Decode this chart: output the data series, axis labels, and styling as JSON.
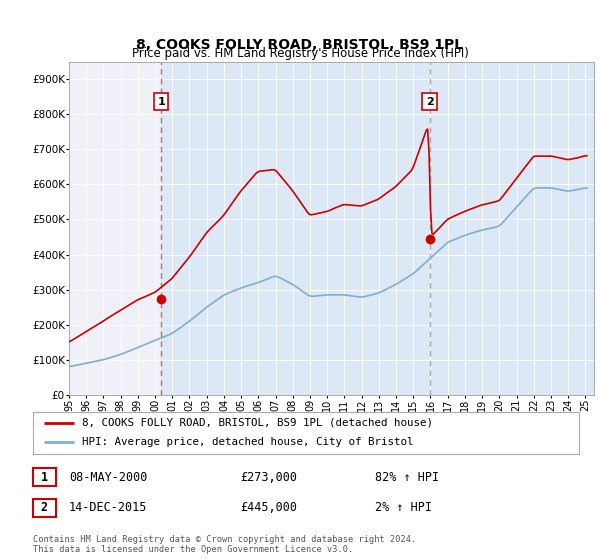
{
  "title": "8, COOKS FOLLY ROAD, BRISTOL, BS9 1PL",
  "subtitle": "Price paid vs. HM Land Registry's House Price Index (HPI)",
  "ylim": [
    0,
    950000
  ],
  "yticks": [
    0,
    100000,
    200000,
    300000,
    400000,
    500000,
    600000,
    700000,
    800000,
    900000
  ],
  "ytick_labels": [
    "£0",
    "£100K",
    "£200K",
    "£300K",
    "£400K",
    "£500K",
    "£600K",
    "£700K",
    "£800K",
    "£900K"
  ],
  "hpi_color": "#7bafd4",
  "price_color": "#cc0000",
  "marker_color": "#cc0000",
  "dashed_color": "#cc6666",
  "vline2_color": "#aaaaaa",
  "bg_color_left": "#f0f0f8",
  "bg_color_right": "#dce8f5",
  "sale1_year": 2000.35,
  "sale1_price": 273000,
  "sale2_year": 2015.95,
  "sale2_price": 445000,
  "legend_entry1": "8, COOKS FOLLY ROAD, BRISTOL, BS9 1PL (detached house)",
  "legend_entry2": "HPI: Average price, detached house, City of Bristol",
  "ann1_date": "08-MAY-2000",
  "ann1_price": "£273,000",
  "ann1_hpi": "82% ↑ HPI",
  "ann2_date": "14-DEC-2015",
  "ann2_price": "£445,000",
  "ann2_hpi": "2% ↑ HPI",
  "footer": "Contains HM Land Registry data © Crown copyright and database right 2024.\nThis data is licensed under the Open Government Licence v3.0.",
  "xmin": 1995,
  "xmax": 2025.5
}
